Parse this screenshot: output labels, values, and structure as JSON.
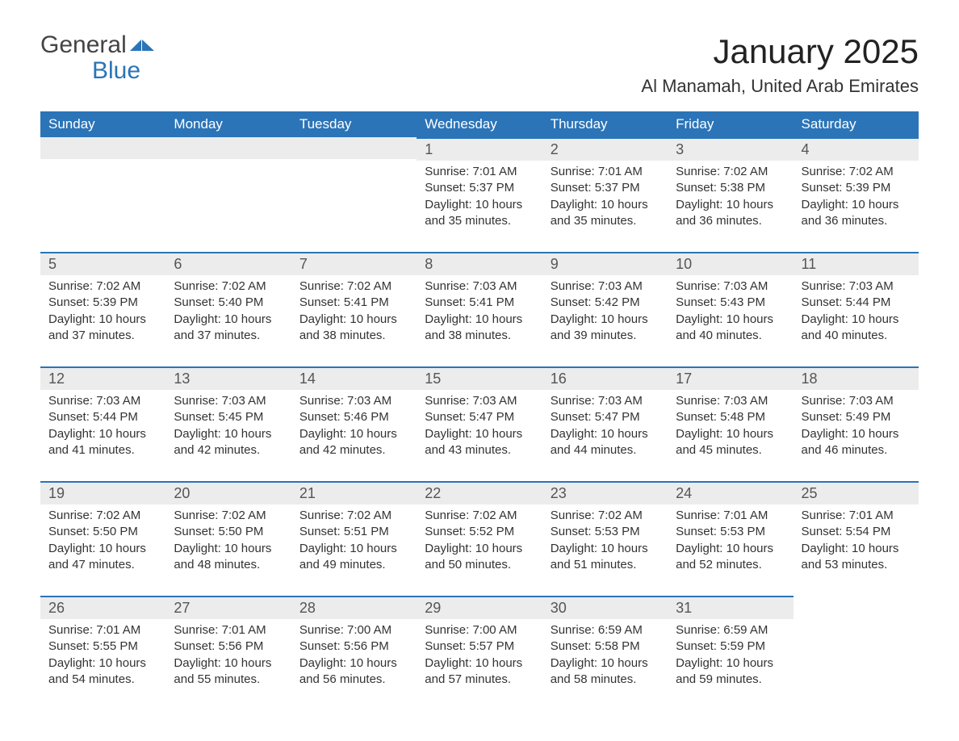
{
  "logo": {
    "word1": "General",
    "word2": "Blue"
  },
  "title": "January 2025",
  "location": "Al Manamah, United Arab Emirates",
  "colors": {
    "brand_blue": "#2b74b8",
    "header_bg": "#2b74b8",
    "daynum_bg": "#ececec",
    "text": "#333333",
    "background": "#ffffff"
  },
  "layout": {
    "columns": 7,
    "rows": 5,
    "first_day_column_index": 3
  },
  "weekdays": [
    "Sunday",
    "Monday",
    "Tuesday",
    "Wednesday",
    "Thursday",
    "Friday",
    "Saturday"
  ],
  "days": [
    {
      "n": 1,
      "sunrise": "7:01 AM",
      "sunset": "5:37 PM",
      "daylight": "10 hours and 35 minutes."
    },
    {
      "n": 2,
      "sunrise": "7:01 AM",
      "sunset": "5:37 PM",
      "daylight": "10 hours and 35 minutes."
    },
    {
      "n": 3,
      "sunrise": "7:02 AM",
      "sunset": "5:38 PM",
      "daylight": "10 hours and 36 minutes."
    },
    {
      "n": 4,
      "sunrise": "7:02 AM",
      "sunset": "5:39 PM",
      "daylight": "10 hours and 36 minutes."
    },
    {
      "n": 5,
      "sunrise": "7:02 AM",
      "sunset": "5:39 PM",
      "daylight": "10 hours and 37 minutes."
    },
    {
      "n": 6,
      "sunrise": "7:02 AM",
      "sunset": "5:40 PM",
      "daylight": "10 hours and 37 minutes."
    },
    {
      "n": 7,
      "sunrise": "7:02 AM",
      "sunset": "5:41 PM",
      "daylight": "10 hours and 38 minutes."
    },
    {
      "n": 8,
      "sunrise": "7:03 AM",
      "sunset": "5:41 PM",
      "daylight": "10 hours and 38 minutes."
    },
    {
      "n": 9,
      "sunrise": "7:03 AM",
      "sunset": "5:42 PM",
      "daylight": "10 hours and 39 minutes."
    },
    {
      "n": 10,
      "sunrise": "7:03 AM",
      "sunset": "5:43 PM",
      "daylight": "10 hours and 40 minutes."
    },
    {
      "n": 11,
      "sunrise": "7:03 AM",
      "sunset": "5:44 PM",
      "daylight": "10 hours and 40 minutes."
    },
    {
      "n": 12,
      "sunrise": "7:03 AM",
      "sunset": "5:44 PM",
      "daylight": "10 hours and 41 minutes."
    },
    {
      "n": 13,
      "sunrise": "7:03 AM",
      "sunset": "5:45 PM",
      "daylight": "10 hours and 42 minutes."
    },
    {
      "n": 14,
      "sunrise": "7:03 AM",
      "sunset": "5:46 PM",
      "daylight": "10 hours and 42 minutes."
    },
    {
      "n": 15,
      "sunrise": "7:03 AM",
      "sunset": "5:47 PM",
      "daylight": "10 hours and 43 minutes."
    },
    {
      "n": 16,
      "sunrise": "7:03 AM",
      "sunset": "5:47 PM",
      "daylight": "10 hours and 44 minutes."
    },
    {
      "n": 17,
      "sunrise": "7:03 AM",
      "sunset": "5:48 PM",
      "daylight": "10 hours and 45 minutes."
    },
    {
      "n": 18,
      "sunrise": "7:03 AM",
      "sunset": "5:49 PM",
      "daylight": "10 hours and 46 minutes."
    },
    {
      "n": 19,
      "sunrise": "7:02 AM",
      "sunset": "5:50 PM",
      "daylight": "10 hours and 47 minutes."
    },
    {
      "n": 20,
      "sunrise": "7:02 AM",
      "sunset": "5:50 PM",
      "daylight": "10 hours and 48 minutes."
    },
    {
      "n": 21,
      "sunrise": "7:02 AM",
      "sunset": "5:51 PM",
      "daylight": "10 hours and 49 minutes."
    },
    {
      "n": 22,
      "sunrise": "7:02 AM",
      "sunset": "5:52 PM",
      "daylight": "10 hours and 50 minutes."
    },
    {
      "n": 23,
      "sunrise": "7:02 AM",
      "sunset": "5:53 PM",
      "daylight": "10 hours and 51 minutes."
    },
    {
      "n": 24,
      "sunrise": "7:01 AM",
      "sunset": "5:53 PM",
      "daylight": "10 hours and 52 minutes."
    },
    {
      "n": 25,
      "sunrise": "7:01 AM",
      "sunset": "5:54 PM",
      "daylight": "10 hours and 53 minutes."
    },
    {
      "n": 26,
      "sunrise": "7:01 AM",
      "sunset": "5:55 PM",
      "daylight": "10 hours and 54 minutes."
    },
    {
      "n": 27,
      "sunrise": "7:01 AM",
      "sunset": "5:56 PM",
      "daylight": "10 hours and 55 minutes."
    },
    {
      "n": 28,
      "sunrise": "7:00 AM",
      "sunset": "5:56 PM",
      "daylight": "10 hours and 56 minutes."
    },
    {
      "n": 29,
      "sunrise": "7:00 AM",
      "sunset": "5:57 PM",
      "daylight": "10 hours and 57 minutes."
    },
    {
      "n": 30,
      "sunrise": "6:59 AM",
      "sunset": "5:58 PM",
      "daylight": "10 hours and 58 minutes."
    },
    {
      "n": 31,
      "sunrise": "6:59 AM",
      "sunset": "5:59 PM",
      "daylight": "10 hours and 59 minutes."
    }
  ],
  "labels": {
    "sunrise": "Sunrise:",
    "sunset": "Sunset:",
    "daylight": "Daylight:"
  }
}
